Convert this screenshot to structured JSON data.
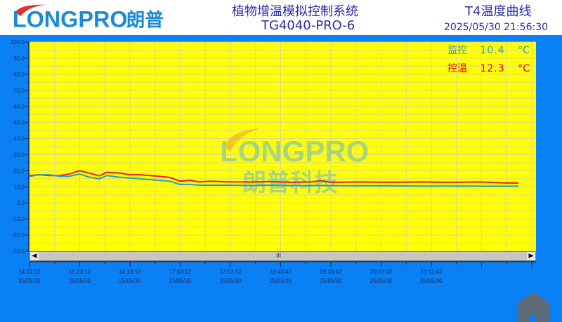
{
  "header": {
    "logo_text": "LONGPRO",
    "logo_cn": "朗普",
    "system_title": "植物增温模拟控制系统",
    "model": "TG4040-PRO-6",
    "page_title": "T4温度曲线",
    "datetime": "2025/05/30 21:56:30"
  },
  "readouts": [
    {
      "label": "监控",
      "value": "10.4",
      "unit": "°C",
      "color": "#2a9dbf"
    },
    {
      "label": "控温",
      "value": "12.3",
      "unit": "°C",
      "color": "#e00000"
    }
  ],
  "watermark": {
    "text": "LONGPRO",
    "cn": "朗普科技"
  },
  "scrollbar": {
    "grip": "III",
    "left": "◀",
    "right": "▶"
  },
  "chart_data": {
    "type": "line",
    "ylim": [
      -30,
      100
    ],
    "yticks": [
      "100.0",
      "90.0",
      "80.0",
      "70.0",
      "60.0",
      "50.0",
      "40.0",
      "30.0",
      "20.0",
      "10.0",
      "0.0",
      "-10.0",
      "-20.0",
      "-30.0"
    ],
    "xstart": "14:33:12",
    "xticks": [
      {
        "time": "14:33:12",
        "date": "25/05/30"
      },
      {
        "time": "15:23:12",
        "date": "25/05/30"
      },
      {
        "time": "16:13:12",
        "date": "25/05/30"
      },
      {
        "time": "17:03:12",
        "date": "25/05/30"
      },
      {
        "time": "17:53:12",
        "date": "25/05/30"
      },
      {
        "time": "18:43:42",
        "date": "25/05/30"
      },
      {
        "time": "19:33:42",
        "date": "25/05/30"
      },
      {
        "time": "20:23:42",
        "date": "25/05/30"
      },
      {
        "time": "21:13:42",
        "date": "25/05/30"
      }
    ],
    "grid": true,
    "background": "#ffff00",
    "series": [
      {
        "name": "控温",
        "color": "#e82000",
        "points": [
          [
            "14:33",
            17
          ],
          [
            "14:43",
            17.5
          ],
          [
            "14:53",
            17
          ],
          [
            "15:03",
            17
          ],
          [
            "15:13",
            18
          ],
          [
            "15:23",
            20
          ],
          [
            "15:33",
            18.5
          ],
          [
            "15:43",
            16.8
          ],
          [
            "15:50",
            19
          ],
          [
            "16:03",
            18.5
          ],
          [
            "16:13",
            17.5
          ],
          [
            "16:23",
            17.5
          ],
          [
            "16:33",
            17
          ],
          [
            "16:43",
            16.5
          ],
          [
            "16:53",
            15.8
          ],
          [
            "17:03",
            13.5
          ],
          [
            "17:13",
            14
          ],
          [
            "17:23",
            13
          ],
          [
            "17:33",
            13.5
          ],
          [
            "17:53",
            13
          ],
          [
            "18:13",
            13
          ],
          [
            "18:33",
            13.2
          ],
          [
            "18:53",
            12.8
          ],
          [
            "19:13",
            13
          ],
          [
            "19:23",
            13.8
          ],
          [
            "19:33",
            12.8
          ],
          [
            "20:03",
            13
          ],
          [
            "20:33",
            12.8
          ],
          [
            "21:03",
            13
          ],
          [
            "21:33",
            12.8
          ],
          [
            "22:03",
            13
          ],
          [
            "22:23",
            12.5
          ],
          [
            "22:40",
            12.3
          ]
        ]
      },
      {
        "name": "监控",
        "color": "#2a9dbf",
        "points": [
          [
            "14:33",
            16.5
          ],
          [
            "14:43",
            17.5
          ],
          [
            "14:53",
            17.5
          ],
          [
            "15:03",
            16.5
          ],
          [
            "15:13",
            16.5
          ],
          [
            "15:23",
            18
          ],
          [
            "15:33",
            16
          ],
          [
            "15:43",
            15
          ],
          [
            "15:50",
            17
          ],
          [
            "16:03",
            16
          ],
          [
            "16:13",
            15.5
          ],
          [
            "16:23",
            15
          ],
          [
            "16:33",
            14.5
          ],
          [
            "16:43",
            14
          ],
          [
            "16:53",
            13.5
          ],
          [
            "17:03",
            11.5
          ],
          [
            "17:13",
            11.5
          ],
          [
            "17:23",
            11
          ],
          [
            "17:33",
            11
          ],
          [
            "17:53",
            11
          ],
          [
            "18:13",
            10.8
          ],
          [
            "18:33",
            11
          ],
          [
            "18:53",
            10.8
          ],
          [
            "19:13",
            10.8
          ],
          [
            "19:33",
            10.8
          ],
          [
            "20:03",
            10.6
          ],
          [
            "20:33",
            10.6
          ],
          [
            "21:03",
            10.5
          ],
          [
            "21:33",
            10.5
          ],
          [
            "22:03",
            10.4
          ],
          [
            "22:40",
            10.4
          ]
        ]
      }
    ]
  }
}
